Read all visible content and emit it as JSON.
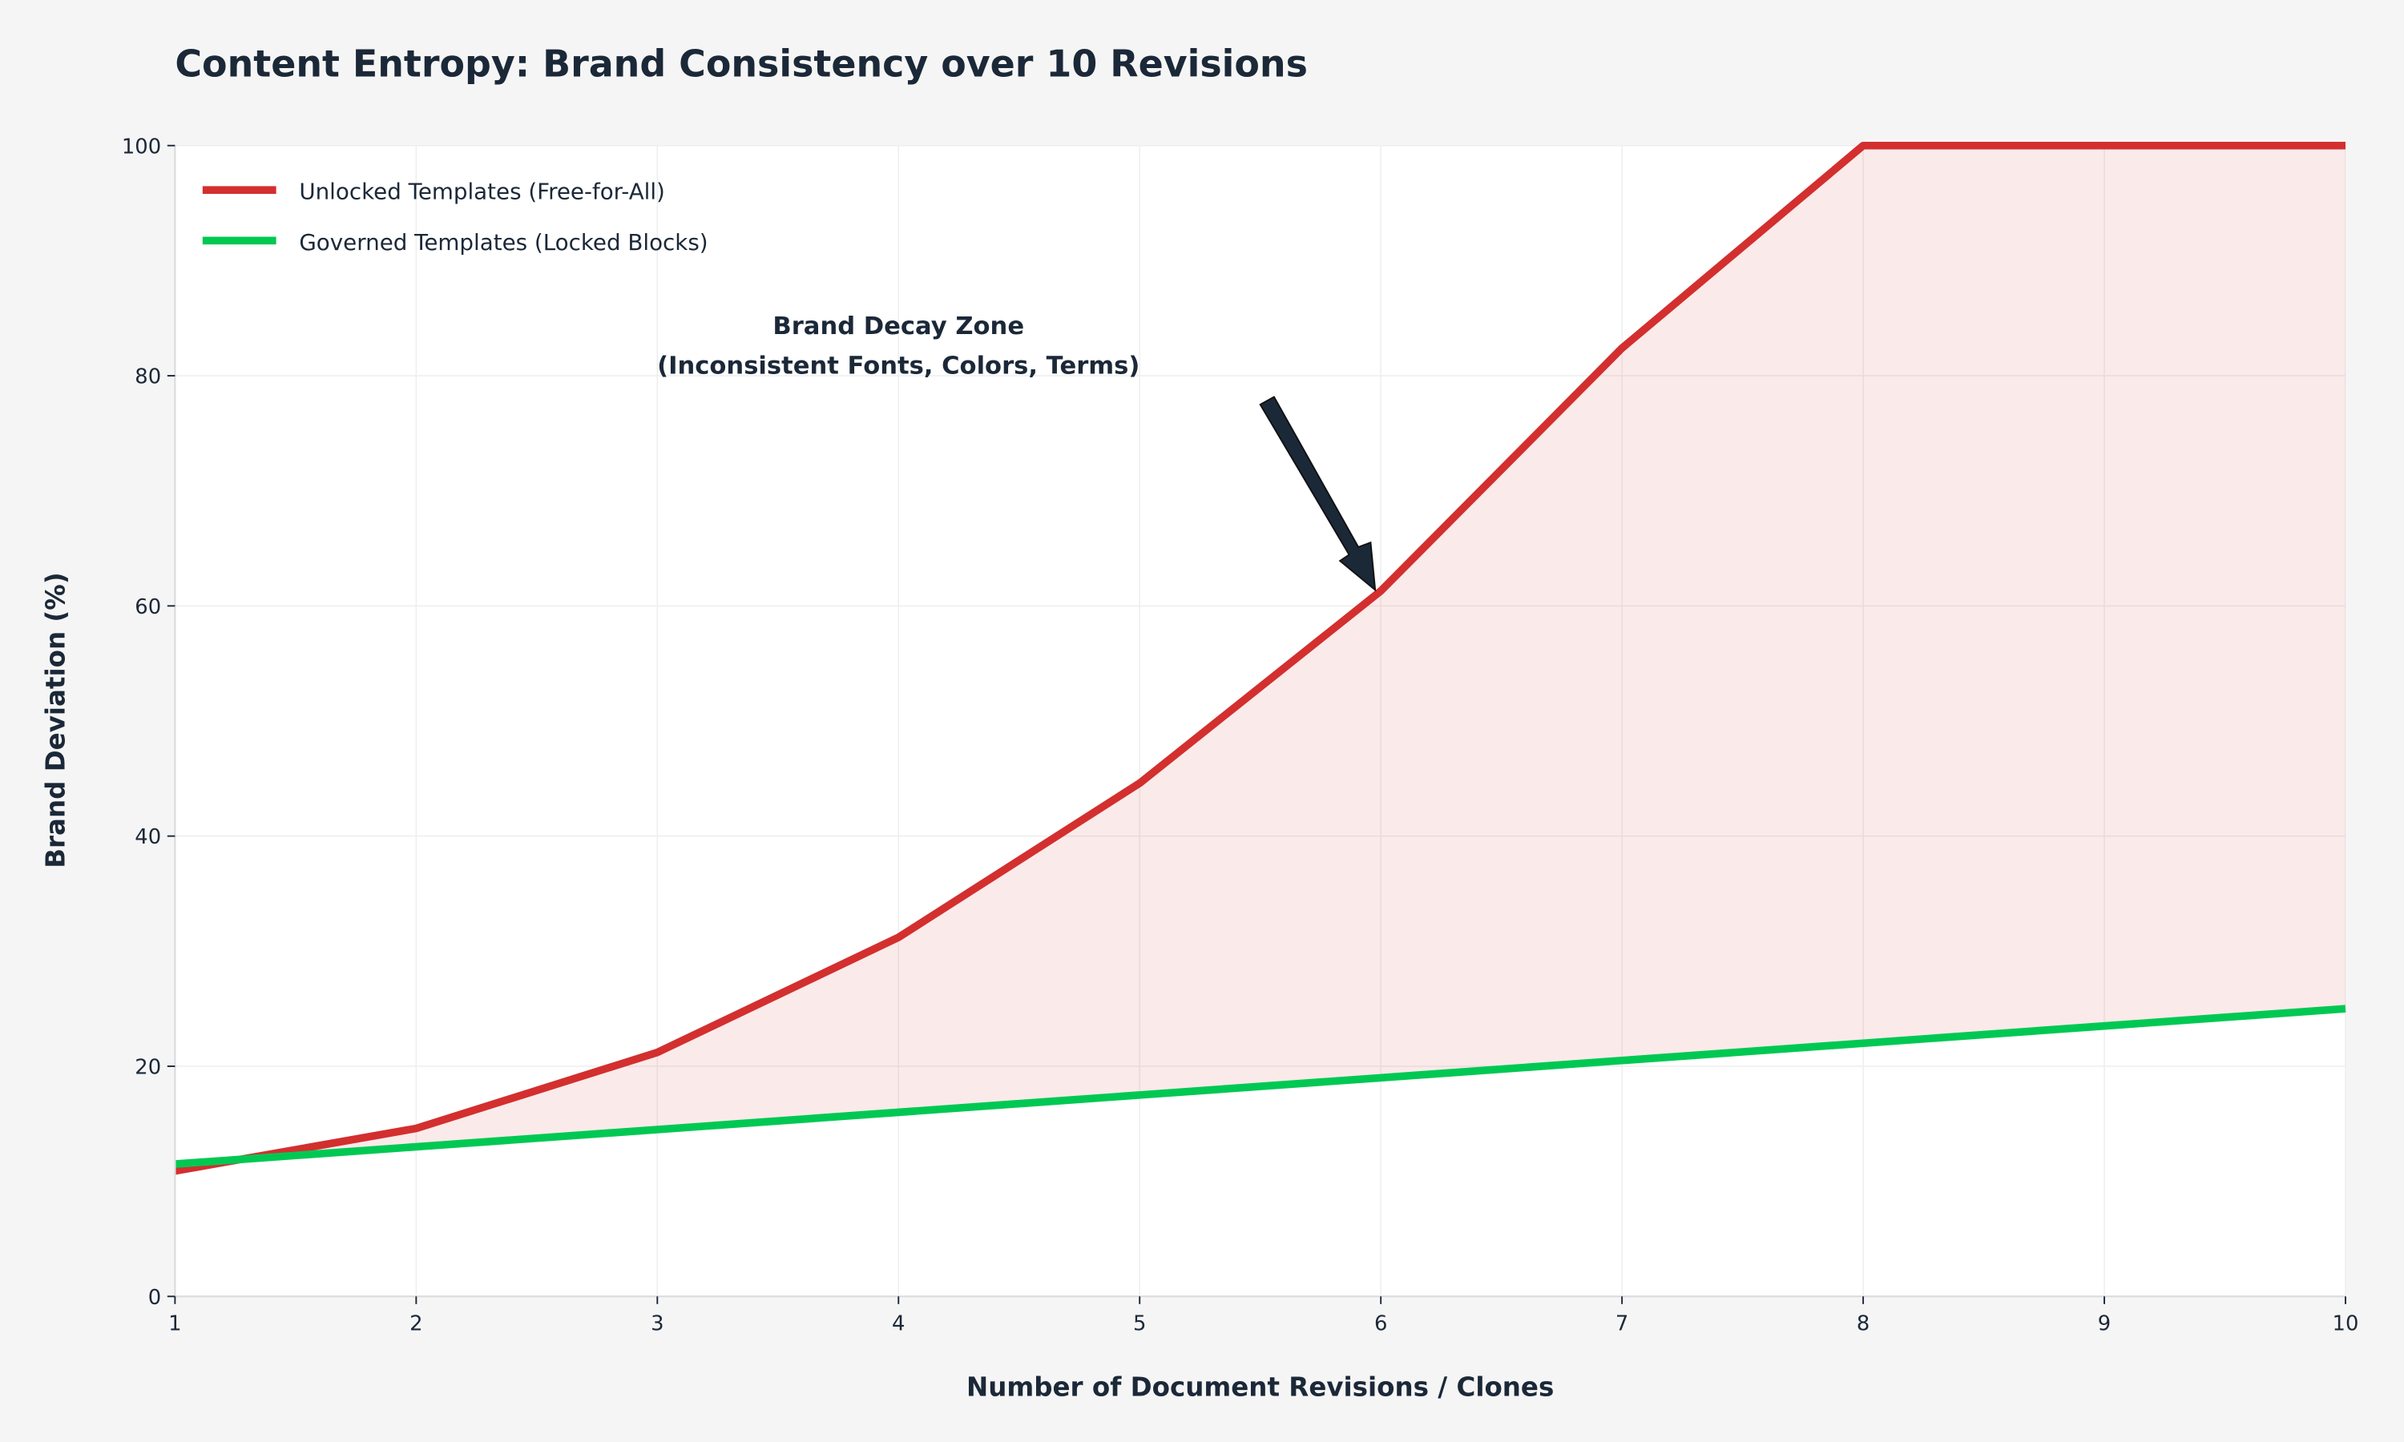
{
  "chart_data": {
    "type": "line",
    "title": "Content Entropy: Brand Consistency over 10 Revisions",
    "xlabel": "Number of Document Revisions / Clones",
    "ylabel": "Brand Deviation (%)",
    "x": [
      1,
      2,
      3,
      4,
      5,
      6,
      7,
      8,
      9,
      10
    ],
    "xlim": [
      1,
      10
    ],
    "ylim": [
      0,
      100
    ],
    "xticks": [
      1,
      2,
      3,
      4,
      5,
      6,
      7,
      8,
      9,
      10
    ],
    "yticks": [
      0,
      20,
      40,
      60,
      80,
      100
    ],
    "grid": true,
    "legend_position": "top-left",
    "series": [
      {
        "name": "Unlocked Templates (Free-for-All)",
        "color": "#d32f2f",
        "values": [
          10.9,
          14.6,
          21.2,
          31.2,
          44.6,
          61.3,
          82.4,
          100,
          100,
          100
        ]
      },
      {
        "name": "Governed Templates (Locked Blocks)",
        "color": "#00c853",
        "values": [
          11.5,
          13.0,
          14.5,
          16.0,
          17.5,
          19.0,
          20.5,
          22.0,
          23.5,
          25.0
        ]
      }
    ],
    "fill_between": {
      "color": "#d32f2f",
      "opacity": 0.1
    },
    "annotation": {
      "lines": [
        "Brand Decay Zone",
        "(Inconsistent Fonts, Colors, Terms)"
      ],
      "points_to": {
        "x": 6,
        "y": 61.3
      }
    }
  }
}
